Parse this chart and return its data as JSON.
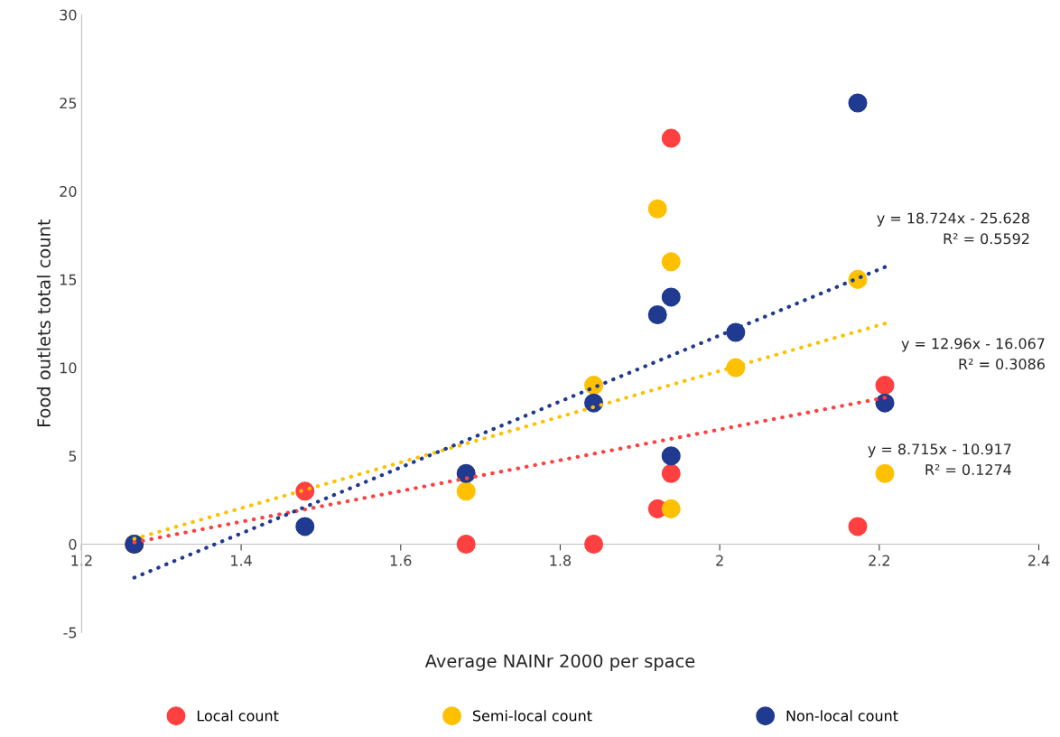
{
  "chart_data": {
    "type": "scatter",
    "xlabel": "Average NAINr 2000 per space",
    "ylabel": "Food outlets total count",
    "xlim": [
      1.2,
      2.4
    ],
    "xticks": [
      1.2,
      1.4,
      1.6,
      1.8,
      {
        "value": 2.0,
        "label": "2"
      },
      2.2,
      2.4
    ],
    "ylim": [
      -5,
      30
    ],
    "yticks": [
      -5,
      0,
      5,
      10,
      15,
      20,
      25,
      30
    ],
    "grid": false,
    "legend": "bottom",
    "marker": "circle",
    "series": [
      {
        "name": "Local count",
        "color": "#ff4040",
        "x": [
          1.266,
          1.48,
          1.682,
          1.842,
          1.922,
          1.939,
          1.939,
          2.173,
          2.207
        ],
        "values": [
          0,
          3,
          0,
          0,
          2,
          4,
          23,
          1,
          9
        ]
      },
      {
        "name": "Semi-local count",
        "color": "#ffc000",
        "x": [
          1.266,
          1.682,
          1.842,
          1.922,
          1.939,
          1.939,
          2.02,
          2.173,
          2.207
        ],
        "values": [
          0,
          3,
          9,
          19,
          16,
          2,
          10,
          15,
          4
        ]
      },
      {
        "name": "Non-local count",
        "color": "#1f3a8f",
        "x": [
          1.266,
          1.48,
          1.682,
          1.842,
          1.922,
          1.939,
          1.939,
          2.02,
          2.173,
          2.207
        ],
        "values": [
          0,
          1,
          4,
          8,
          13,
          14,
          5,
          12,
          25,
          8
        ]
      },
      {
        "type": "line",
        "line_style": "dotted",
        "marker": "none",
        "color": "#ff4040",
        "x": [
          1.266,
          2.207
        ],
        "values": [
          0.1,
          8.3
        ]
      },
      {
        "type": "line",
        "line_style": "dotted",
        "marker": "none",
        "color": "#ffc000",
        "x": [
          1.266,
          2.207
        ],
        "values": [
          0.3,
          12.5
        ]
      },
      {
        "type": "line",
        "line_style": "dotted",
        "marker": "none",
        "color": "#1f3a8f",
        "x": [
          1.266,
          2.207
        ],
        "values": [
          -1.9,
          15.7
        ]
      }
    ],
    "annotations": [
      "y = 8.715x - 10.917\nR² = 0.1274",
      "y = 12.96x - 16.067\nR² = 0.3086",
      "y = 18.724x - 25.628\nR² = 0.5592"
    ]
  }
}
